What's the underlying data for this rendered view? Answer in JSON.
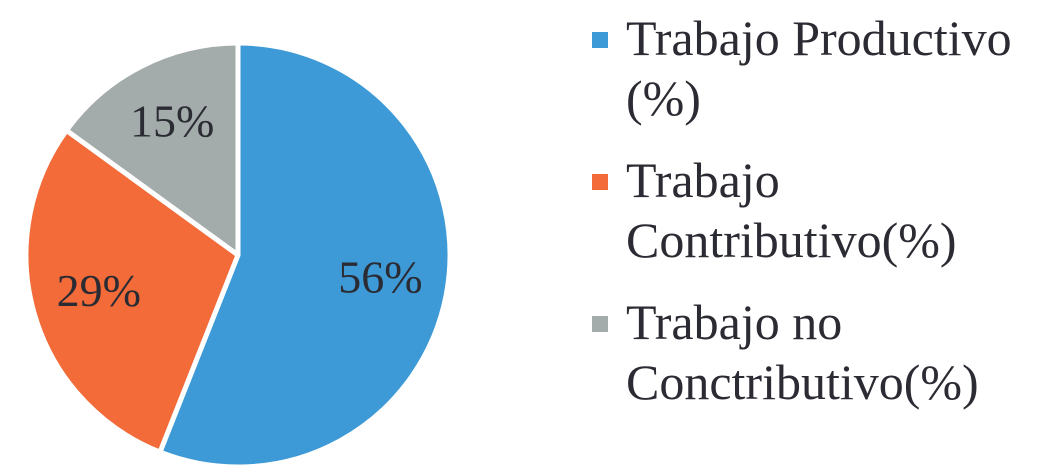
{
  "chart_data": {
    "type": "pie",
    "series": [
      {
        "name": "Trabajo Productivo (%)",
        "color": "#3d9ad6"
      },
      {
        "name": "Trabajo Contributivo(%)",
        "color": "#f26b38"
      },
      {
        "name": "Trabajo no Conctributivo(%)",
        "color": "#a3acab"
      }
    ],
    "values": [
      56,
      29,
      15
    ],
    "value_labels": [
      "56%",
      "29%",
      "15%"
    ],
    "legend": "right"
  }
}
